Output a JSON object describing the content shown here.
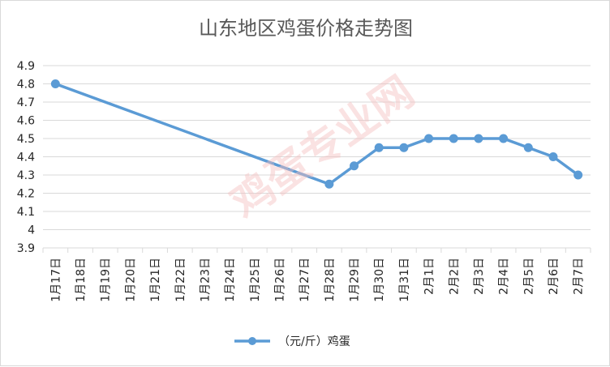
{
  "chart_data": {
    "type": "line",
    "title": "山东地区鸡蛋价格走势图",
    "categories": [
      "1月17日",
      "1月18日",
      "1月19日",
      "1月20日",
      "1月21日",
      "1月22日",
      "1月23日",
      "1月24日",
      "1月25日",
      "1月26日",
      "1月27日",
      "1月28日",
      "1月29日",
      "1月30日",
      "1月31日",
      "2月1日",
      "2月2日",
      "2月3日",
      "2月4日",
      "2月5日",
      "2月6日",
      "2月7日"
    ],
    "series": [
      {
        "name": "（元/斤）鸡蛋",
        "color": "#5b9bd5",
        "values": [
          4.8,
          null,
          null,
          null,
          null,
          null,
          null,
          null,
          null,
          null,
          null,
          4.25,
          4.35,
          4.45,
          4.45,
          4.5,
          4.5,
          4.5,
          4.5,
          4.45,
          4.4,
          4.3
        ]
      }
    ],
    "yticks": [
      "3.9",
      "4",
      "4.1",
      "4.2",
      "4.3",
      "4.4",
      "4.5",
      "4.6",
      "4.7",
      "4.8",
      "4.9"
    ],
    "ylim": [
      3.9,
      4.9
    ],
    "grid": true,
    "legend": "bottom"
  },
  "watermark": "鸡蛋专业网"
}
